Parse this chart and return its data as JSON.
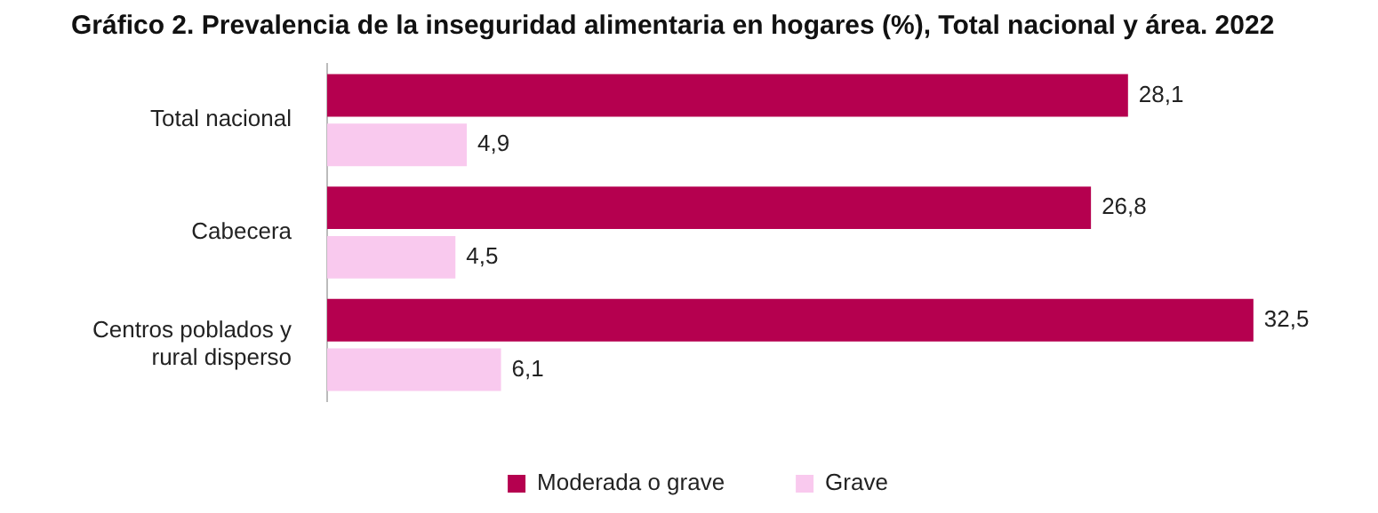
{
  "chart_data": {
    "type": "bar",
    "orientation": "horizontal",
    "title": "Gráfico 2. Prevalencia de la inseguridad alimentaria en hogares (%), Total nacional y área. 2022",
    "categories": [
      "Total nacional",
      "Cabecera",
      "Centros poblados y rural disperso"
    ],
    "series": [
      {
        "name": "Moderada o grave",
        "color": "#b5004f",
        "values": [
          28.1,
          26.8,
          32.5
        ],
        "value_labels": [
          "28,1",
          "26,8",
          "32,5"
        ]
      },
      {
        "name": "Grave",
        "color": "#f9c9ee",
        "values": [
          4.9,
          4.5,
          6.1
        ],
        "value_labels": [
          "4,9",
          "4,5",
          "6,1"
        ]
      }
    ],
    "legend": "bottom"
  }
}
